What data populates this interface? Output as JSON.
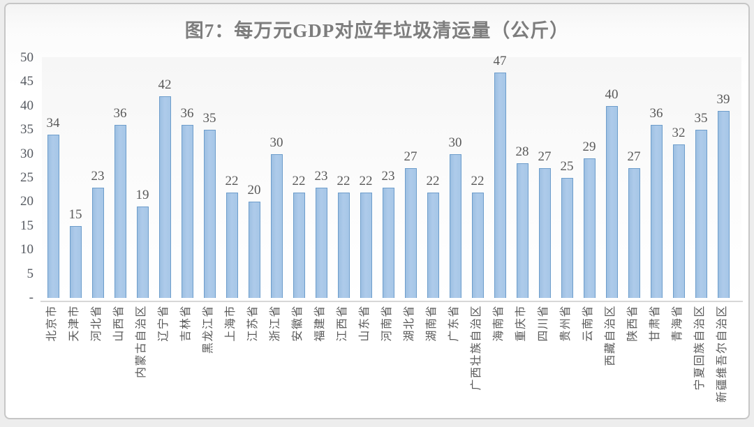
{
  "title": "图7：每万元GDP对应年垃圾清运量（公斤）",
  "chart_data": {
    "type": "bar",
    "title": "图7：每万元GDP对应年垃圾清运量（公斤）",
    "categories": [
      "北京市",
      "天津市",
      "河北省",
      "山西省",
      "内蒙古自治区",
      "辽宁省",
      "吉林省",
      "黑龙江省",
      "上海市",
      "江苏省",
      "浙江省",
      "安徽省",
      "福建省",
      "江西省",
      "山东省",
      "河南省",
      "湖北省",
      "湖南省",
      "广东省",
      "广西壮族自治区",
      "海南省",
      "重庆市",
      "四川省",
      "贵州省",
      "云南省",
      "西藏自治区",
      "陕西省",
      "甘肃省",
      "青海省",
      "宁夏回族自治区",
      "新疆维吾尔自治区"
    ],
    "values": [
      34,
      15,
      23,
      36,
      19,
      42,
      36,
      35,
      22,
      20,
      30,
      22,
      23,
      22,
      22,
      23,
      27,
      22,
      30,
      22,
      47,
      28,
      27,
      25,
      29,
      40,
      27,
      36,
      32,
      35,
      39
    ],
    "xlabel": "",
    "ylabel": "",
    "ylim": [
      0,
      50
    ],
    "y_tick_interval": 5,
    "y_tick_labels": [
      "-",
      "5",
      "10",
      "15",
      "20",
      "25",
      "30",
      "35",
      "40",
      "45",
      "50"
    ],
    "zero_tick_label": "-",
    "grid": "off",
    "legend": "none",
    "data_labels": "above bars"
  },
  "colors": {
    "bar_fill": "#a9c7e7",
    "bar_border": "#6d9dcb",
    "label_text": "#595959",
    "title_text": "#7d7d7d",
    "axis_line": "#d7d7d7",
    "frame_border": "#c6c6c6"
  }
}
